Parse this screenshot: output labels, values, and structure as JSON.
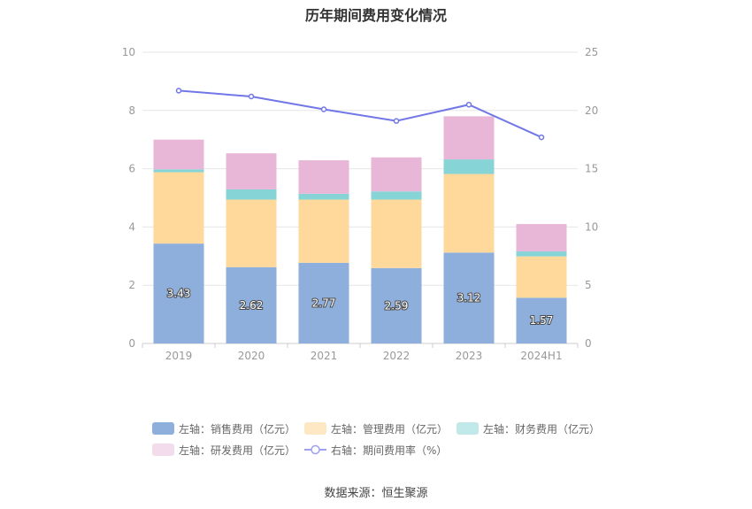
{
  "title": "历年期间费用变化情况",
  "source": "数据来源：恒生聚源",
  "chart_data": {
    "type": "bar",
    "stacked": true,
    "categories": [
      "2019",
      "2020",
      "2021",
      "2022",
      "2023",
      "2024H1"
    ],
    "y_left": {
      "ylim": [
        0,
        10
      ],
      "ticks": [
        0,
        2,
        4,
        6,
        8,
        10
      ]
    },
    "y_right": {
      "ylim": [
        0,
        25
      ],
      "ticks": [
        0,
        5,
        10,
        15,
        20,
        25
      ]
    },
    "grid": true,
    "legend_position": "bottom",
    "series": [
      {
        "name": "左轴：销售费用（亿元）",
        "type": "bar",
        "axis": "left",
        "color": "#8eaedb",
        "legend_color": "#8eaedb",
        "labels": true,
        "values": [
          3.43,
          2.62,
          2.77,
          2.59,
          3.12,
          1.57
        ]
      },
      {
        "name": "左轴：管理费用（亿元）",
        "type": "bar",
        "axis": "left",
        "color": "#fed99b",
        "legend_color": "#fee8c3",
        "labels": false,
        "values": [
          2.45,
          2.32,
          2.17,
          2.35,
          2.7,
          1.42
        ]
      },
      {
        "name": "左轴：财务费用（亿元）",
        "type": "bar",
        "axis": "left",
        "color": "#86d4d6",
        "legend_color": "#c2e9ea",
        "labels": false,
        "values": [
          0.1,
          0.35,
          0.2,
          0.28,
          0.5,
          0.17
        ]
      },
      {
        "name": "左轴：研发费用（亿元）",
        "type": "bar",
        "axis": "left",
        "color": "#e8b7d8",
        "legend_color": "#f3dcec",
        "labels": false,
        "values": [
          1.02,
          1.24,
          1.15,
          1.17,
          1.48,
          0.94
        ]
      },
      {
        "name": "右轴：期间费用率（%）",
        "type": "line",
        "axis": "right",
        "color": "#7177e6",
        "legend_color": "#9ea2ee",
        "labels": false,
        "values": [
          21.7,
          21.2,
          20.1,
          19.1,
          20.5,
          17.7
        ]
      }
    ]
  }
}
